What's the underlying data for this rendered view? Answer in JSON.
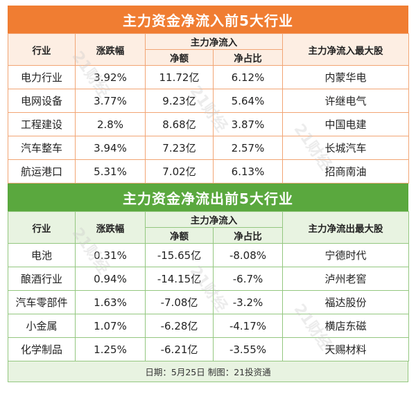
{
  "inflow": {
    "title": "主力资金净流入前5大行业",
    "headers": {
      "industry": "行业",
      "change": "涨跌幅",
      "group": "主力净流入",
      "amount": "净额",
      "ratio": "净占比",
      "top_stock": "主力净流入最大股"
    },
    "rows": [
      {
        "industry": "电力行业",
        "change": "3.92%",
        "amount": "11.72亿",
        "ratio": "6.12%",
        "top_stock": "内蒙华电"
      },
      {
        "industry": "电网设备",
        "change": "3.77%",
        "amount": "9.23亿",
        "ratio": "5.64%",
        "top_stock": "许继电气"
      },
      {
        "industry": "工程建设",
        "change": "2.8%",
        "amount": "8.68亿",
        "ratio": "3.87%",
        "top_stock": "中国电建"
      },
      {
        "industry": "汽车整车",
        "change": "3.94%",
        "amount": "7.23亿",
        "ratio": "2.57%",
        "top_stock": "长城汽车"
      },
      {
        "industry": "航运港口",
        "change": "5.31%",
        "amount": "7.02亿",
        "ratio": "6.13%",
        "top_stock": "招商南油"
      }
    ]
  },
  "outflow": {
    "title": "主力资金净流出前5大行业",
    "headers": {
      "industry": "行业",
      "change": "涨跌幅",
      "group": "主力净流入",
      "amount": "净额",
      "ratio": "净占比",
      "top_stock": "主力净流出最大股"
    },
    "rows": [
      {
        "industry": "电池",
        "change": "0.31%",
        "amount": "-15.65亿",
        "ratio": "-8.08%",
        "top_stock": "宁德时代"
      },
      {
        "industry": "酿酒行业",
        "change": "0.94%",
        "amount": "-14.15亿",
        "ratio": "-6.7%",
        "top_stock": "泸州老窖"
      },
      {
        "industry": "汽车零部件",
        "change": "1.63%",
        "amount": "-7.08亿",
        "ratio": "-3.2%",
        "top_stock": "福达股份"
      },
      {
        "industry": "小金属",
        "change": "1.07%",
        "amount": "-6.28亿",
        "ratio": "-4.17%",
        "top_stock": "横店东磁"
      },
      {
        "industry": "化学制品",
        "change": "1.25%",
        "amount": "-6.21亿",
        "ratio": "-3.55%",
        "top_stock": "天赐材料"
      }
    ]
  },
  "footer": "日期：5月25日 制图：21投资通",
  "watermark": "21财经"
}
